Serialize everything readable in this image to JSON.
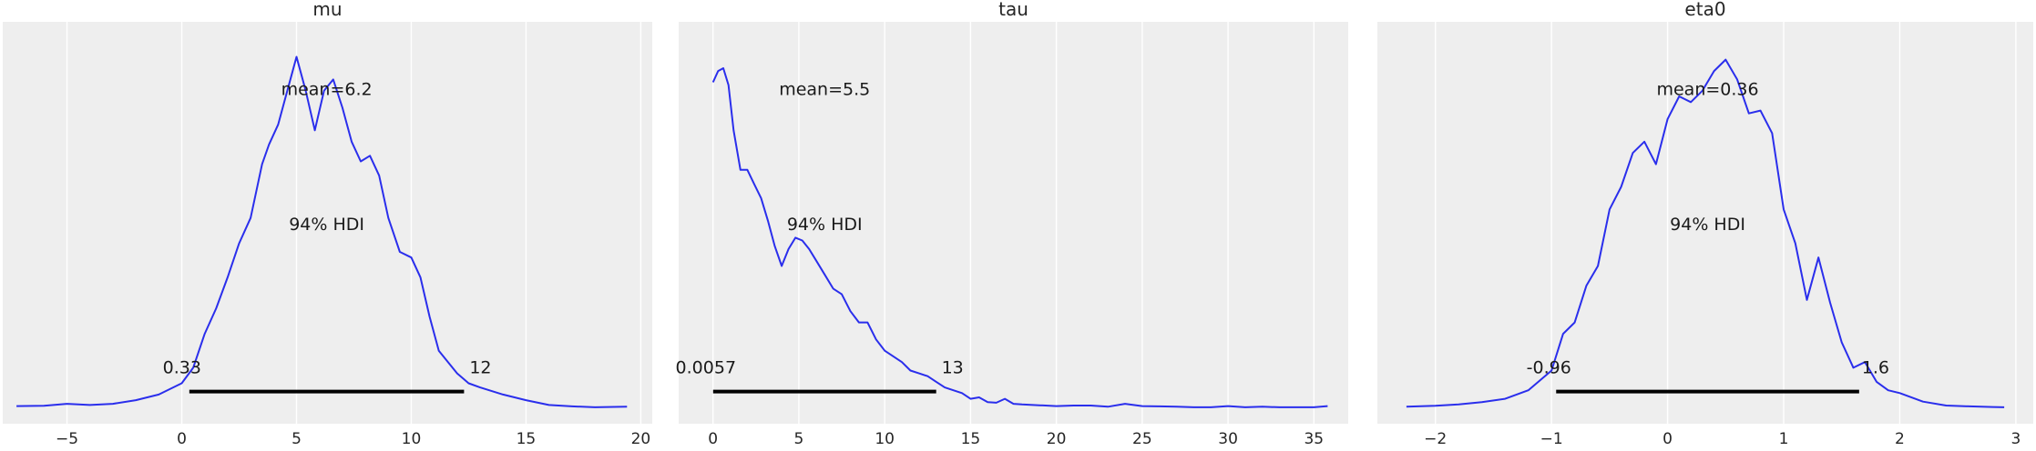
{
  "chart_data": [
    {
      "type": "line",
      "title": "mu",
      "xlim": [
        -7.8,
        20.5
      ],
      "xticks": [
        -5,
        0,
        5,
        10,
        15,
        20
      ],
      "xtick_labels": [
        "−5",
        "0",
        "5",
        "10",
        "15",
        "20"
      ],
      "grid": true,
      "mean_label": "mean=6.2",
      "hdi_label": "94% HDI",
      "hdi": [
        0.33,
        12.3
      ],
      "hdi_low_label": "0.33",
      "hdi_high_label": "12",
      "series": [
        {
          "x": [
            -7.2,
            -6.0,
            -5.0,
            -4.0,
            -3.0,
            -2.0,
            -1.0,
            0.0,
            0.5,
            1.0,
            1.5,
            2.0,
            2.5,
            3.0,
            3.5,
            3.8,
            4.2,
            4.6,
            5.0,
            5.4,
            5.8,
            6.2,
            6.6,
            7.0,
            7.4,
            7.8,
            8.2,
            8.6,
            9.0,
            9.5,
            10.0,
            10.4,
            10.8,
            11.2,
            11.6,
            12.0,
            12.5,
            13.0,
            14.0,
            15.0,
            16.0,
            17.0,
            18.0,
            19.4
          ],
          "y": [
            0.004,
            0.005,
            0.012,
            0.008,
            0.012,
            0.025,
            0.045,
            0.085,
            0.14,
            0.26,
            0.35,
            0.46,
            0.58,
            0.67,
            0.86,
            0.93,
            1.0,
            1.12,
            1.24,
            1.12,
            0.98,
            1.12,
            1.16,
            1.06,
            0.94,
            0.87,
            0.89,
            0.82,
            0.67,
            0.55,
            0.53,
            0.46,
            0.32,
            0.2,
            0.16,
            0.12,
            0.085,
            0.07,
            0.045,
            0.025,
            0.008,
            0.003,
            0.0,
            0.002
          ]
        }
      ]
    },
    {
      "type": "line",
      "title": "tau",
      "xlim": [
        -2.0,
        37.0
      ],
      "xticks": [
        0,
        5,
        10,
        15,
        20,
        25,
        30,
        35
      ],
      "xtick_labels": [
        "0",
        "5",
        "10",
        "15",
        "20",
        "25",
        "30",
        "35"
      ],
      "grid": true,
      "mean_label": "mean=5.5",
      "hdi_label": "94% HDI",
      "hdi": [
        0.0057,
        13.0
      ],
      "hdi_low_label": "0.0057",
      "hdi_high_label": "13",
      "series": [
        {
          "x": [
            0.0,
            0.3,
            0.6,
            0.9,
            1.2,
            1.6,
            2.0,
            2.4,
            2.8,
            3.2,
            3.6,
            4.0,
            4.4,
            4.8,
            5.2,
            5.6,
            6.0,
            6.5,
            7.0,
            7.5,
            8.0,
            8.5,
            9.0,
            9.5,
            10.0,
            10.5,
            11.0,
            11.5,
            12.0,
            12.5,
            13.0,
            13.5,
            14.0,
            14.5,
            15.0,
            15.5,
            16.0,
            16.5,
            17.0,
            17.5,
            18.0,
            19.0,
            20.0,
            21.0,
            22.0,
            23.0,
            24.0,
            25.0,
            26.0,
            27.0,
            28.0,
            29.0,
            30.0,
            31.0,
            32.0,
            33.0,
            34.0,
            35.0,
            35.8
          ],
          "y": [
            1.15,
            1.19,
            1.2,
            1.14,
            0.98,
            0.84,
            0.84,
            0.79,
            0.74,
            0.66,
            0.57,
            0.5,
            0.56,
            0.6,
            0.59,
            0.56,
            0.52,
            0.47,
            0.42,
            0.4,
            0.34,
            0.3,
            0.3,
            0.24,
            0.2,
            0.18,
            0.16,
            0.13,
            0.12,
            0.11,
            0.09,
            0.07,
            0.06,
            0.05,
            0.03,
            0.035,
            0.018,
            0.016,
            0.03,
            0.012,
            0.01,
            0.007,
            0.004,
            0.006,
            0.006,
            0.002,
            0.012,
            0.004,
            0.003,
            0.002,
            0.0,
            0.0,
            0.004,
            0.0,
            0.002,
            0.0,
            0.0,
            0.0,
            0.004
          ]
        }
      ]
    },
    {
      "type": "line",
      "title": "eta0",
      "xlim": [
        -2.5,
        3.15
      ],
      "xticks": [
        -2,
        -1,
        0,
        1,
        2,
        3
      ],
      "xtick_labels": [
        "−2",
        "−1",
        "0",
        "1",
        "2",
        "3"
      ],
      "grid": true,
      "mean_label": "mean=0.36",
      "hdi_label": "94% HDI",
      "hdi": [
        -0.96,
        1.65
      ],
      "hdi_low_label": "-0.96",
      "hdi_high_label": "1.6",
      "series": [
        {
          "x": [
            -2.25,
            -2.0,
            -1.8,
            -1.6,
            -1.4,
            -1.2,
            -1.0,
            -0.9,
            -0.8,
            -0.7,
            -0.6,
            -0.5,
            -0.4,
            -0.3,
            -0.2,
            -0.1,
            0.0,
            0.1,
            0.2,
            0.3,
            0.4,
            0.5,
            0.6,
            0.7,
            0.8,
            0.9,
            1.0,
            1.1,
            1.2,
            1.3,
            1.4,
            1.5,
            1.6,
            1.7,
            1.8,
            1.9,
            2.0,
            2.2,
            2.4,
            2.6,
            2.8,
            2.9
          ],
          "y": [
            0.002,
            0.005,
            0.01,
            0.018,
            0.03,
            0.06,
            0.13,
            0.26,
            0.3,
            0.43,
            0.5,
            0.7,
            0.78,
            0.9,
            0.94,
            0.86,
            1.02,
            1.1,
            1.08,
            1.12,
            1.19,
            1.23,
            1.16,
            1.04,
            1.05,
            0.97,
            0.7,
            0.58,
            0.38,
            0.53,
            0.37,
            0.23,
            0.14,
            0.16,
            0.09,
            0.06,
            0.05,
            0.02,
            0.006,
            0.003,
            0.001,
            0.0
          ]
        }
      ]
    }
  ]
}
